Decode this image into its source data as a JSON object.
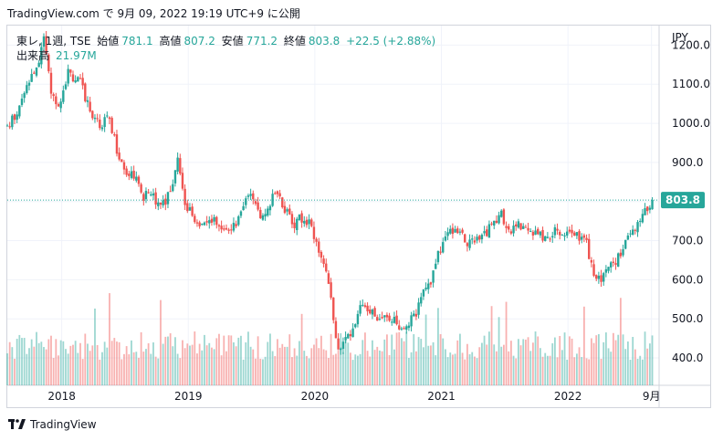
{
  "header": {
    "caption": "TradingView.com で 9月 09, 2022 19:19 UTC+9 に公開"
  },
  "legend": {
    "symbol": "東レ, 1週, TSE",
    "open_label": "始値",
    "open": "781.1",
    "high_label": "高値",
    "high": "807.2",
    "low_label": "安値",
    "low": "771.2",
    "close_label": "終値",
    "close": "803.8",
    "change": "+22.5 (+2.88%)",
    "volume_label": "出来高",
    "volume": "21.97M"
  },
  "footer": {
    "brand": "TradingView"
  },
  "colors": {
    "up": "#26a69a",
    "down": "#ef5350",
    "grid": "#f0f3fa",
    "text": "#131722"
  },
  "chart_data": {
    "type": "candlestick",
    "currency": "JPY",
    "last_price": 803.8,
    "last_price_label": "803.8",
    "ylim": [
      330,
      1250
    ],
    "y_ticks": [
      400,
      500,
      600,
      700,
      800,
      900,
      1000,
      1100,
      1200
    ],
    "y_tick_labels": [
      "400.0",
      "500.0",
      "600.0",
      "700.0",
      "800.0",
      "900.0",
      "1000.0",
      "1100.0",
      "1200.0"
    ],
    "x_ticks": [
      "2018",
      "2019",
      "2020",
      "2021",
      "2022",
      "9月"
    ],
    "x_tick_pos": [
      2018.0,
      2019.0,
      2020.0,
      2021.0,
      2022.0,
      2022.66
    ],
    "x_range": [
      2017.57,
      2022.72
    ],
    "price_path": [
      [
        2017.57,
        990
      ],
      [
        2017.66,
        1030
      ],
      [
        2017.74,
        1110
      ],
      [
        2017.82,
        1150
      ],
      [
        2017.86,
        1215
      ],
      [
        2017.92,
        1080
      ],
      [
        2017.98,
        1050
      ],
      [
        2018.05,
        1130
      ],
      [
        2018.15,
        1100
      ],
      [
        2018.23,
        1030
      ],
      [
        2018.3,
        1000
      ],
      [
        2018.38,
        1010
      ],
      [
        2018.44,
        930
      ],
      [
        2018.5,
        880
      ],
      [
        2018.58,
        870
      ],
      [
        2018.63,
        810
      ],
      [
        2018.7,
        820
      ],
      [
        2018.78,
        780
      ],
      [
        2018.86,
        830
      ],
      [
        2018.92,
        910
      ],
      [
        2018.98,
        790
      ],
      [
        2019.05,
        760
      ],
      [
        2019.1,
        730
      ],
      [
        2019.2,
        760
      ],
      [
        2019.28,
        720
      ],
      [
        2019.36,
        740
      ],
      [
        2019.42,
        770
      ],
      [
        2019.5,
        830
      ],
      [
        2019.56,
        760
      ],
      [
        2019.62,
        780
      ],
      [
        2019.68,
        830
      ],
      [
        2019.75,
        790
      ],
      [
        2019.82,
        740
      ],
      [
        2019.9,
        760
      ],
      [
        2019.96,
        740
      ],
      [
        2020.0,
        700
      ],
      [
        2020.07,
        640
      ],
      [
        2020.13,
        560
      ],
      [
        2020.18,
        410
      ],
      [
        2020.24,
        460
      ],
      [
        2020.3,
        470
      ],
      [
        2020.38,
        540
      ],
      [
        2020.46,
        510
      ],
      [
        2020.55,
        500
      ],
      [
        2020.64,
        490
      ],
      [
        2020.72,
        480
      ],
      [
        2020.8,
        510
      ],
      [
        2020.85,
        580
      ],
      [
        2020.92,
        600
      ],
      [
        2020.98,
        670
      ],
      [
        2021.06,
        730
      ],
      [
        2021.14,
        720
      ],
      [
        2021.22,
        690
      ],
      [
        2021.3,
        700
      ],
      [
        2021.38,
        730
      ],
      [
        2021.46,
        770
      ],
      [
        2021.54,
        730
      ],
      [
        2021.62,
        740
      ],
      [
        2021.7,
        720
      ],
      [
        2021.78,
        710
      ],
      [
        2021.86,
        710
      ],
      [
        2021.92,
        730
      ],
      [
        2021.98,
        715
      ],
      [
        2022.03,
        725
      ],
      [
        2022.09,
        710
      ],
      [
        2022.15,
        690
      ],
      [
        2022.2,
        610
      ],
      [
        2022.25,
        600
      ],
      [
        2022.32,
        630
      ],
      [
        2022.4,
        660
      ],
      [
        2022.48,
        710
      ],
      [
        2022.55,
        740
      ],
      [
        2022.62,
        780
      ],
      [
        2022.66,
        804
      ]
    ],
    "volume_ylim": [
      0,
      35
    ]
  }
}
